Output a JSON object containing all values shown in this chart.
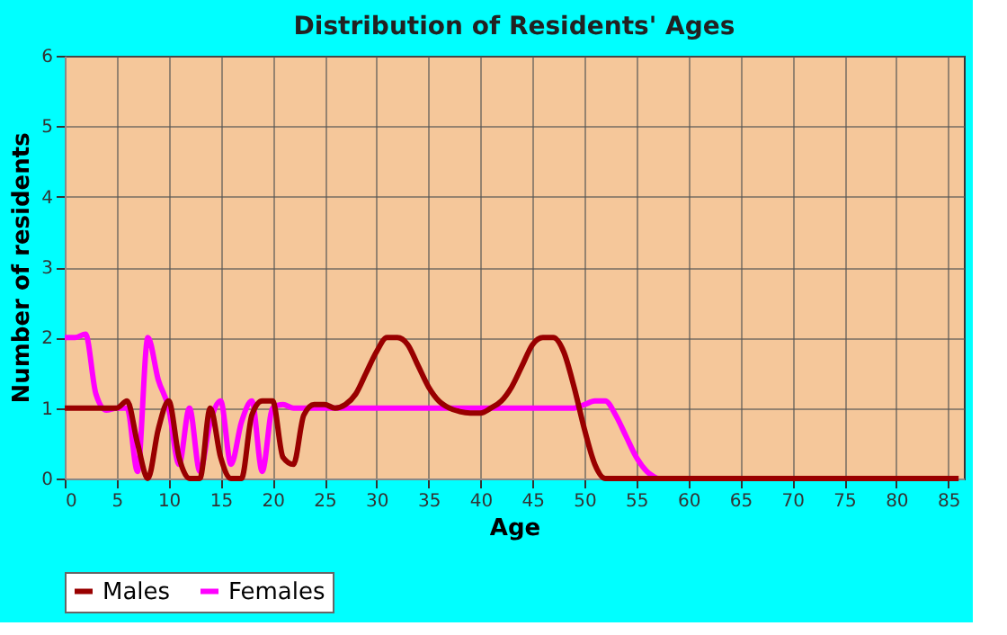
{
  "chart_data": {
    "type": "line",
    "title": "Distribution of Residents' Ages",
    "xlabel": "Age",
    "ylabel": "Number of residents",
    "x": [
      0,
      1,
      2,
      3,
      4,
      5,
      6,
      7,
      8,
      9,
      10,
      11,
      12,
      13,
      14,
      15,
      16,
      17,
      18,
      19,
      20,
      21,
      22,
      23,
      24,
      25,
      26,
      27,
      28,
      29,
      30,
      31,
      32,
      33,
      34,
      35,
      36,
      37,
      38,
      39,
      40,
      41,
      42,
      43,
      44,
      45,
      46,
      47,
      48,
      49,
      50,
      51,
      52,
      53,
      54,
      55,
      56,
      57,
      58,
      59,
      60,
      61,
      62,
      63,
      64,
      65,
      66,
      67,
      68,
      69,
      70,
      71,
      72,
      73,
      74,
      75,
      76,
      77,
      78,
      79,
      80,
      81,
      82,
      83,
      84,
      85,
      86
    ],
    "series": [
      {
        "name": "Males",
        "color": "#990000",
        "values": [
          1,
          1,
          1,
          1,
          1,
          1,
          1.1,
          0.5,
          0,
          0.7,
          1.1,
          0.3,
          0,
          0,
          1,
          0.3,
          0,
          0,
          0.9,
          1.1,
          1.1,
          0.3,
          0.2,
          0.9,
          1.05,
          1.05,
          1,
          1.05,
          1.2,
          1.5,
          1.8,
          2,
          2,
          1.9,
          1.6,
          1.3,
          1.1,
          1,
          0.95,
          0.93,
          0.93,
          1,
          1.1,
          1.3,
          1.6,
          1.9,
          2,
          2,
          1.8,
          1.3,
          0.7,
          0.2,
          0,
          0,
          0,
          0,
          0,
          0,
          0,
          0,
          0,
          0,
          0,
          0,
          0,
          0,
          0,
          0,
          0,
          0,
          0,
          0,
          0,
          0,
          0,
          0,
          0,
          0,
          0,
          0,
          0,
          0,
          0,
          0,
          0,
          0,
          0
        ]
      },
      {
        "name": "Females",
        "color": "#ff00ff",
        "values": [
          2,
          2,
          2.05,
          1.2,
          0.97,
          1,
          1,
          0.1,
          2,
          1.4,
          1,
          0.2,
          1,
          0.1,
          0.8,
          1.1,
          0.2,
          0.8,
          1.1,
          0.1,
          1,
          1.05,
          1,
          1,
          1,
          1,
          1,
          1,
          1,
          1,
          1,
          1,
          1,
          1,
          1,
          1,
          1,
          1,
          1,
          1,
          1,
          1,
          1,
          1,
          1,
          1,
          1,
          1,
          1,
          1,
          1.05,
          1.1,
          1.1,
          0.9,
          0.6,
          0.3,
          0.1,
          0,
          null,
          null,
          null,
          null,
          null,
          null,
          null,
          null,
          null,
          null,
          null,
          null,
          null,
          null,
          null,
          null,
          null,
          null,
          null,
          null,
          null,
          null,
          null,
          null,
          null,
          null,
          null,
          null,
          null
        ]
      }
    ],
    "xlim": [
      0,
      86.5
    ],
    "xticks": [
      0,
      5,
      10,
      15,
      20,
      25,
      30,
      35,
      40,
      45,
      50,
      55,
      60,
      65,
      70,
      75,
      80,
      85
    ],
    "ylim": [
      0,
      6
    ],
    "yticks": [
      0,
      1,
      2,
      3,
      4,
      5,
      6
    ],
    "grid": true,
    "legend": "bottom",
    "marker": "none",
    "line_style": "solid"
  }
}
